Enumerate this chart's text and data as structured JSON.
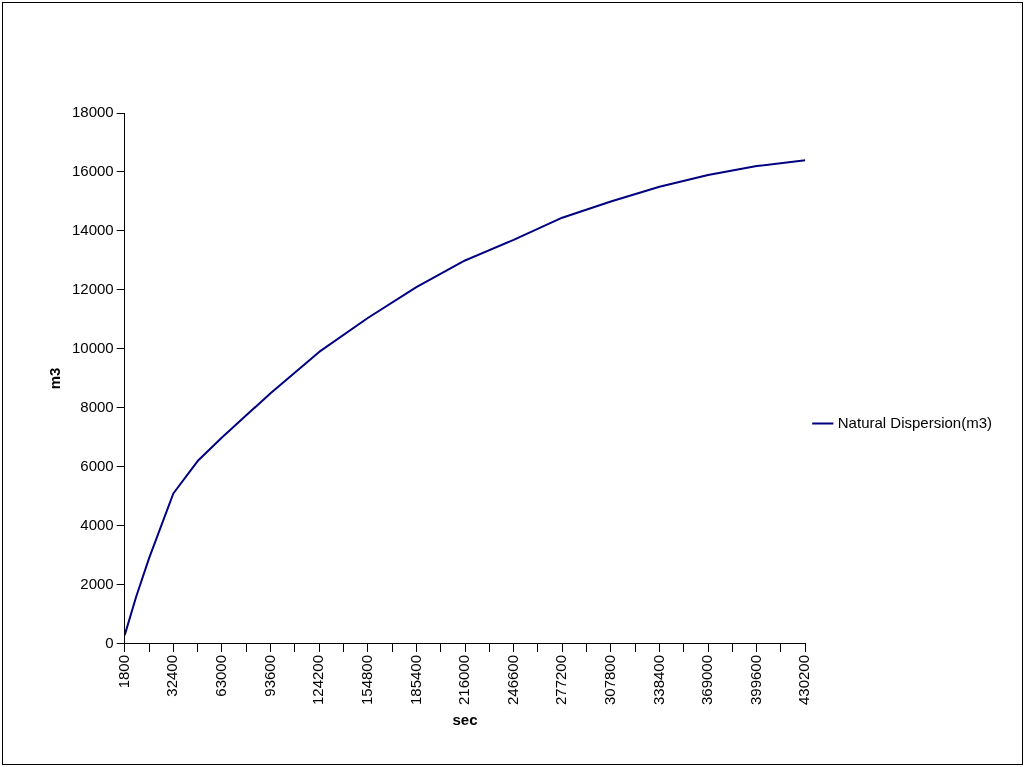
{
  "chart_data": {
    "type": "line",
    "xlabel": "sec",
    "ylabel": "m3",
    "x": [
      1800,
      9000,
      17100,
      32400,
      47700,
      63000,
      93600,
      124200,
      154800,
      185400,
      216000,
      246600,
      277200,
      307800,
      338400,
      369000,
      399600,
      430200
    ],
    "series": [
      {
        "name": "Natural Dispersion(m3)",
        "color": "#000080",
        "values": [
          300,
          1600,
          2900,
          5100,
          6200,
          7000,
          8500,
          9900,
          11050,
          12100,
          13000,
          13700,
          14450,
          15000,
          15500,
          15900,
          16200,
          16400
        ]
      }
    ],
    "xlim": [
      1800,
      430200
    ],
    "xticks": [
      1800,
      {
        "value": 17100,
        "label": null
      },
      32400,
      {
        "value": 47700,
        "label": null
      },
      63000,
      {
        "value": 78300,
        "label": null
      },
      93600,
      {
        "value": 108900,
        "label": null
      },
      124200,
      {
        "value": 139500,
        "label": null
      },
      154800,
      {
        "value": 170100,
        "label": null
      },
      185400,
      {
        "value": 200700,
        "label": null
      },
      216000,
      {
        "value": 231300,
        "label": null
      },
      246600,
      {
        "value": 261900,
        "label": null
      },
      277200,
      {
        "value": 292500,
        "label": null
      },
      307800,
      {
        "value": 323100,
        "label": null
      },
      338400,
      {
        "value": 353700,
        "label": null
      },
      369000,
      {
        "value": 384300,
        "label": null
      },
      399600,
      {
        "value": 414900,
        "label": null
      },
      430200
    ],
    "ylim": [
      0,
      18000
    ],
    "yticks": [
      0,
      2000,
      4000,
      6000,
      8000,
      10000,
      12000,
      14000,
      16000,
      18000
    ],
    "grid": false,
    "legend": "right",
    "marker": "none",
    "line_style": "solid"
  }
}
